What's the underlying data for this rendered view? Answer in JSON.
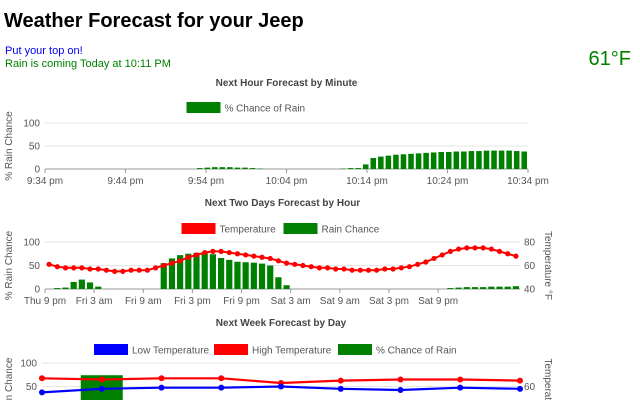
{
  "header": {
    "title": "Weather Forecast for your Jeep",
    "top_message": "Put your top on!",
    "rain_message": "Rain is coming Today at 10:11 PM",
    "current_temp": "61°F"
  },
  "colors": {
    "rain": "#008000",
    "temperature": "#ff0000",
    "low": "#0000ff",
    "link": "#0000ee",
    "grid": "#e6e6e6"
  },
  "chart_data": [
    {
      "type": "bar",
      "title": "Next Hour Forecast by Minute",
      "ylabel": "% Rain Chance",
      "ylim": [
        0,
        100
      ],
      "yticks": [
        0,
        50,
        100
      ],
      "x_tick_labels": [
        "9:34 pm",
        "9:44 pm",
        "9:54 pm",
        "10:04 pm",
        "10:14 pm",
        "10:24 pm",
        "10:34 pm"
      ],
      "legend": [
        "% Chance of Rain"
      ],
      "series": [
        {
          "name": "% Chance of Rain",
          "values": [
            0,
            0,
            0,
            0,
            0,
            0,
            0,
            0,
            0,
            0,
            0,
            0,
            0,
            0,
            0,
            0,
            0,
            0,
            0,
            0,
            2,
            3,
            4,
            4,
            4,
            3,
            3,
            2,
            1,
            0,
            0,
            0,
            0,
            0,
            0,
            0,
            0,
            0,
            0,
            1,
            2,
            2,
            10,
            24,
            27,
            29,
            31,
            32,
            33,
            34,
            35,
            36,
            37,
            37,
            38,
            38,
            39,
            39,
            40,
            40,
            40,
            40,
            39,
            38
          ]
        }
      ]
    },
    {
      "type": "bar+line",
      "title": "Next Two Days Forecast by Hour",
      "ylabel": "% Rain Chance",
      "y2label": "Temperature °F",
      "ylim": [
        0,
        100
      ],
      "yticks": [
        0,
        50,
        100
      ],
      "y2lim": [
        40,
        80
      ],
      "y2ticks": [
        40,
        60,
        80
      ],
      "x_tick_labels": [
        "Thu 9 pm",
        "Fri 3 am",
        "Fri 9 am",
        "Fri 3 pm",
        "Fri 9 pm",
        "Sat 3 am",
        "Sat 9 am",
        "Sat 3 pm",
        "Sat 9 pm"
      ],
      "legend": [
        "Temperature",
        "Rain Chance"
      ],
      "series": [
        {
          "name": "Temperature",
          "type": "line",
          "values": [
            61,
            59,
            58,
            58,
            58,
            57,
            57,
            56,
            55,
            55,
            56,
            56,
            56,
            58,
            60,
            62,
            64,
            67,
            69,
            71,
            72,
            72,
            71,
            70,
            69,
            68,
            67,
            66,
            64,
            62,
            61,
            60,
            59,
            58,
            58,
            57,
            57,
            56,
            56,
            56,
            56,
            57,
            57,
            58,
            59,
            61,
            63,
            66,
            69,
            72,
            74,
            75,
            75,
            75,
            74,
            72,
            70,
            68
          ]
        },
        {
          "name": "Rain Chance",
          "type": "bar",
          "values": [
            0,
            2,
            3,
            15,
            20,
            14,
            5,
            0,
            0,
            0,
            0,
            0,
            0,
            0,
            55,
            65,
            72,
            75,
            77,
            78,
            74,
            66,
            62,
            58,
            57,
            56,
            54,
            50,
            25,
            8,
            0,
            0,
            0,
            0,
            0,
            0,
            0,
            0,
            0,
            0,
            0,
            0,
            0,
            0,
            0,
            0,
            0,
            0,
            0,
            2,
            3,
            4,
            4,
            4,
            5,
            5,
            5,
            6
          ]
        }
      ]
    },
    {
      "type": "bar+line",
      "title": "Next Week Forecast by Day",
      "ylabel": "Rain Chance",
      "y2label": "Temperature",
      "ylim": [
        0,
        100
      ],
      "yticks": [
        50,
        100
      ],
      "y2ticks": [
        60
      ],
      "legend": [
        "Low Temperature",
        "High Temperature",
        "% Chance of Rain"
      ],
      "series": [
        {
          "name": "Low Temperature",
          "type": "line",
          "values": [
            55,
            58,
            59,
            59,
            60,
            58,
            57,
            59,
            58
          ]
        },
        {
          "name": "High Temperature",
          "type": "line",
          "values": [
            67,
            66,
            67,
            67,
            63,
            65,
            66,
            66,
            65
          ]
        },
        {
          "name": "% Chance of Rain",
          "type": "bar",
          "values": [
            0,
            74,
            0,
            0,
            0,
            0,
            0,
            0,
            0
          ]
        }
      ]
    }
  ]
}
